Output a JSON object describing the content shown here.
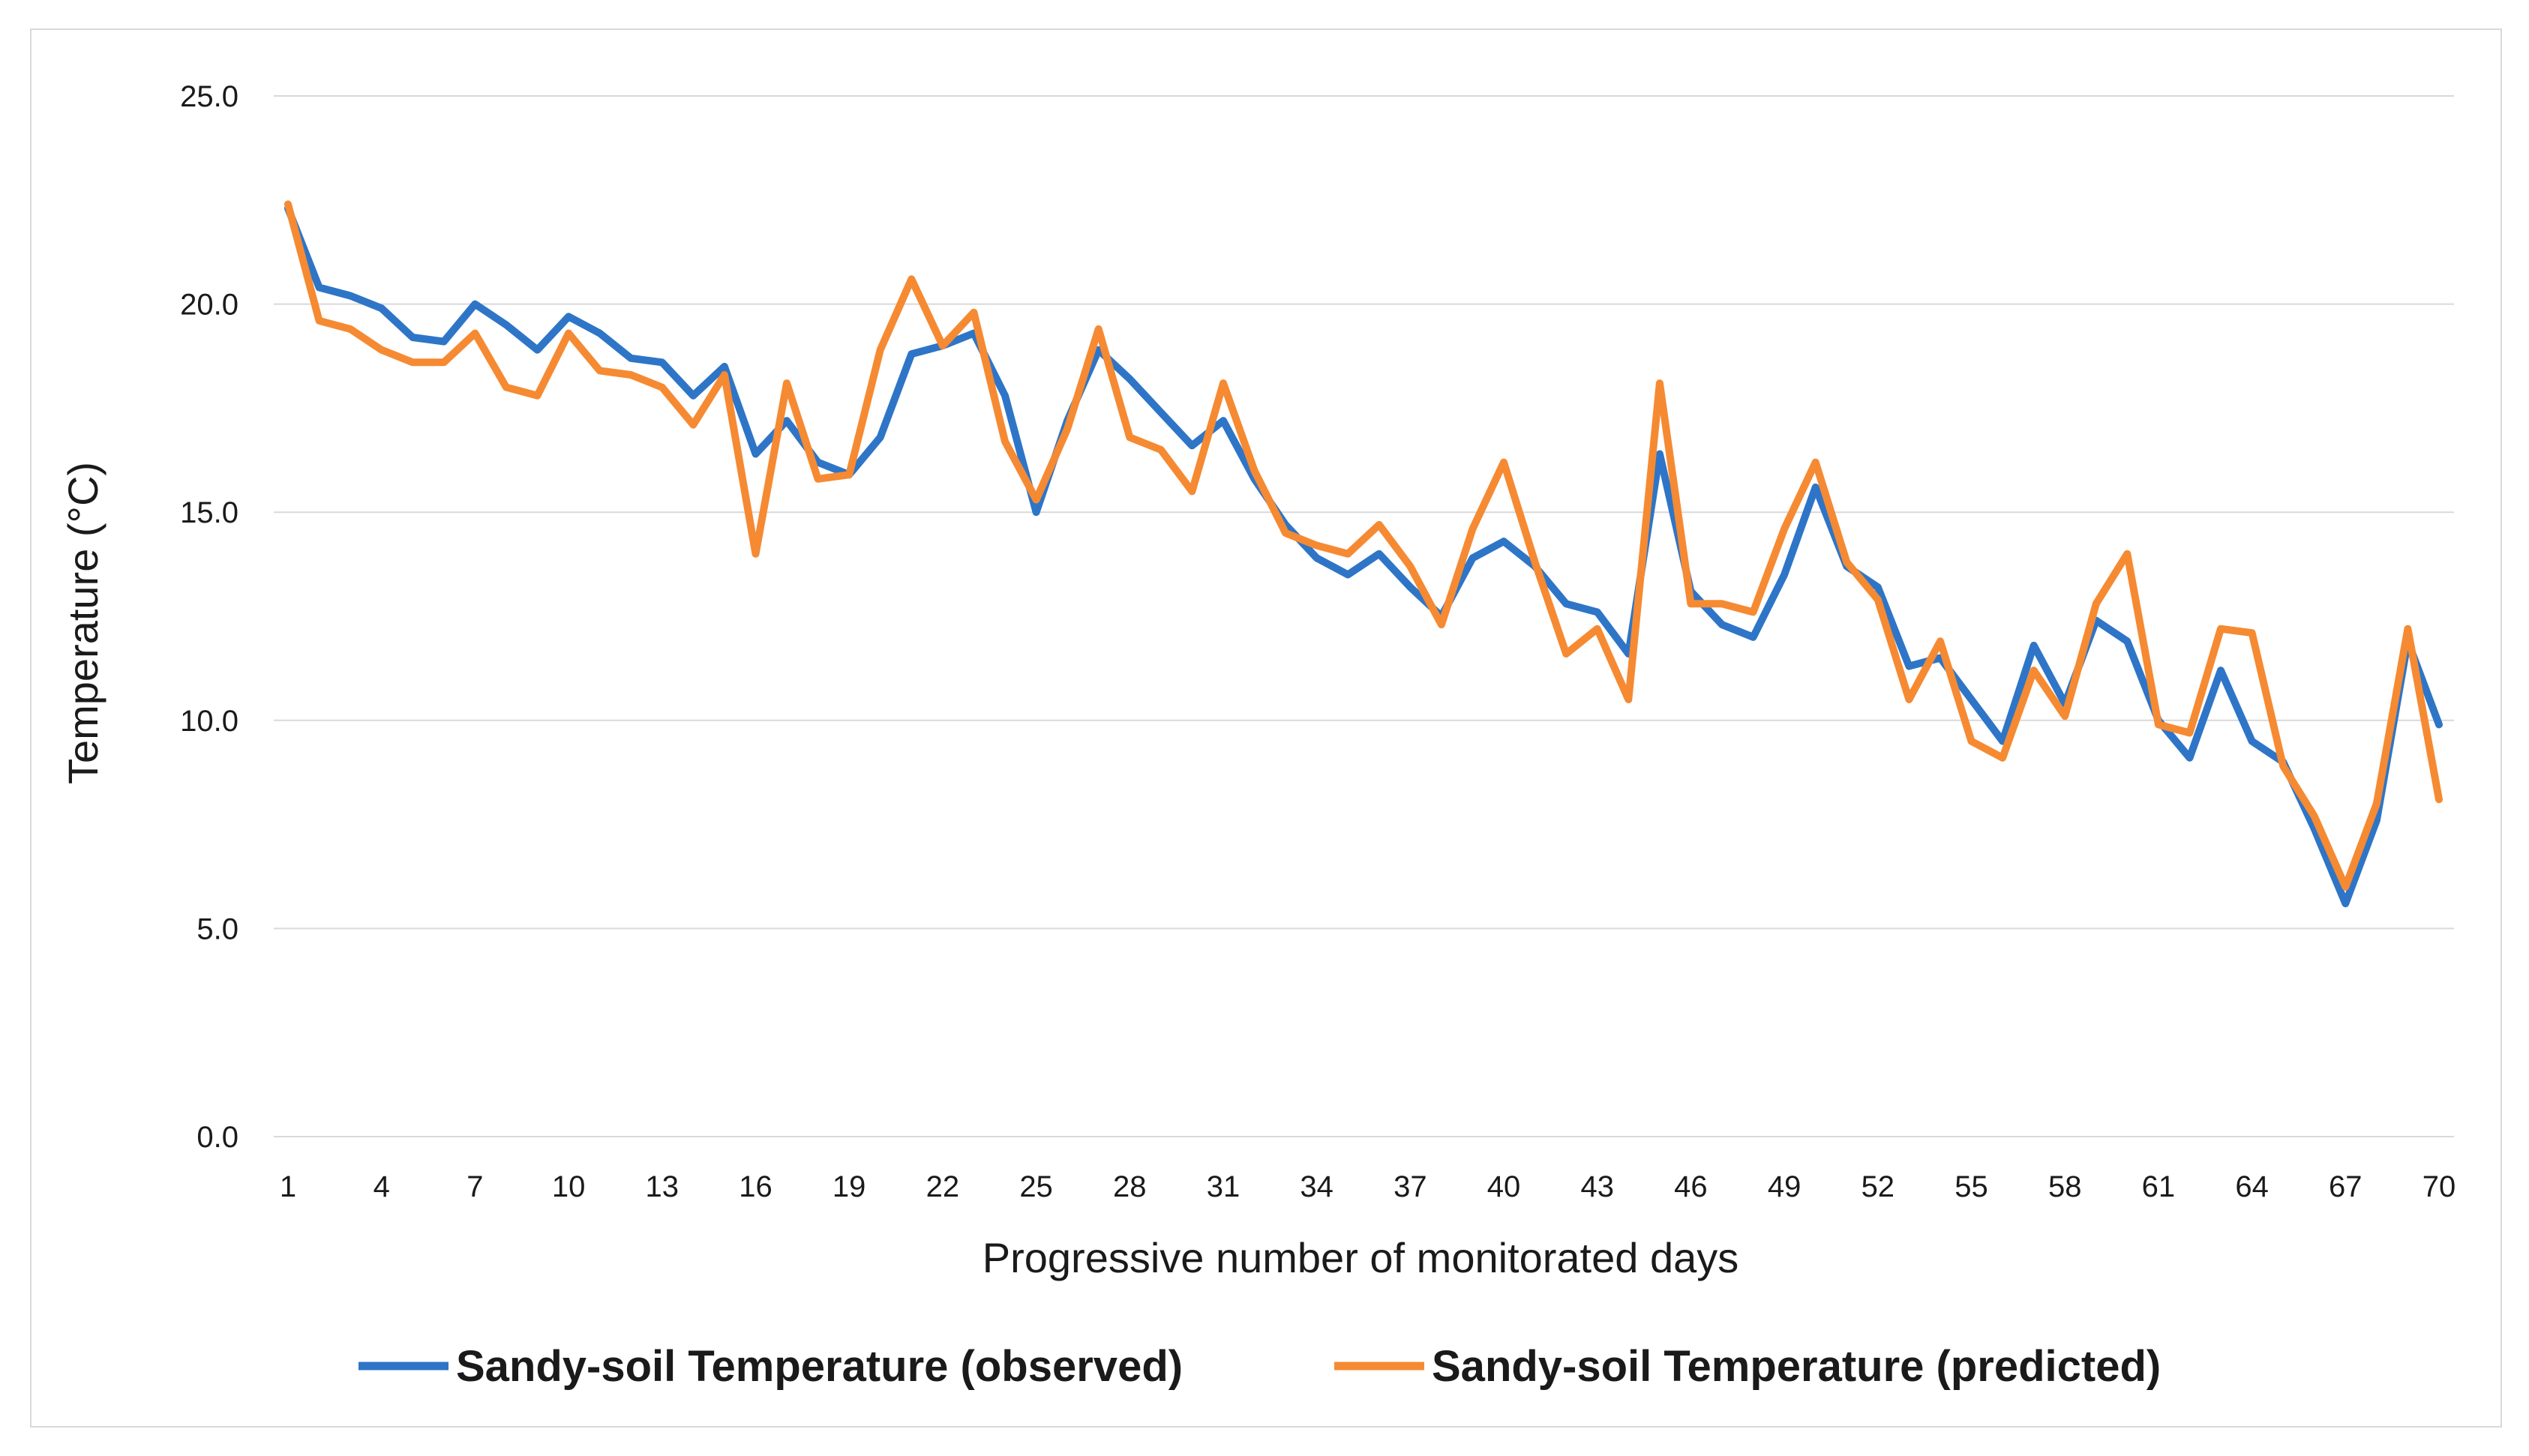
{
  "chart_data": {
    "type": "line",
    "title": "",
    "xlabel": "Progressive number of monitorated days",
    "ylabel": "Temperature (°C)",
    "ylim": [
      0,
      25
    ],
    "yticks": [
      "0.0",
      "5.0",
      "10.0",
      "15.0",
      "20.0",
      "25.0"
    ],
    "xtick_labels": [
      "1",
      "4",
      "7",
      "10",
      "13",
      "16",
      "19",
      "22",
      "25",
      "28",
      "31",
      "34",
      "37",
      "40",
      "43",
      "46",
      "49",
      "52",
      "55",
      "58",
      "61",
      "64",
      "67",
      "70"
    ],
    "grid": true,
    "legend_position": "bottom",
    "x": [
      1,
      2,
      3,
      4,
      5,
      6,
      7,
      8,
      9,
      10,
      11,
      12,
      13,
      14,
      15,
      16,
      17,
      18,
      19,
      20,
      21,
      22,
      23,
      24,
      25,
      26,
      27,
      28,
      29,
      30,
      31,
      32,
      33,
      34,
      35,
      36,
      37,
      38,
      39,
      40,
      41,
      42,
      43,
      44,
      45,
      46,
      47,
      48,
      49,
      50,
      51,
      52,
      53,
      54,
      55,
      56,
      57,
      58,
      59,
      60,
      61,
      62,
      63,
      64,
      65,
      66,
      67,
      68,
      69,
      70
    ],
    "series": [
      {
        "name": "Sandy-soil Temperature (observed)",
        "color": "#2e75c7",
        "values": [
          22.3,
          20.4,
          20.2,
          19.9,
          19.2,
          19.1,
          20.0,
          19.5,
          18.9,
          19.7,
          19.3,
          18.7,
          18.6,
          17.8,
          18.5,
          16.4,
          17.2,
          16.2,
          15.9,
          16.8,
          18.8,
          19.0,
          19.3,
          17.8,
          15.0,
          17.2,
          18.9,
          18.2,
          17.4,
          16.6,
          17.2,
          15.8,
          14.7,
          13.9,
          13.5,
          14.0,
          13.2,
          12.5,
          13.9,
          14.3,
          13.7,
          12.8,
          12.6,
          11.6,
          16.4,
          13.1,
          12.3,
          12.0,
          13.5,
          15.6,
          13.7,
          13.2,
          11.3,
          11.5,
          10.5,
          9.5,
          11.8,
          10.4,
          12.4,
          11.9,
          10.0,
          9.1,
          11.2,
          9.5,
          9.0,
          7.4,
          5.6,
          7.6,
          11.9,
          9.9
        ]
      },
      {
        "name": "Sandy-soil Temperature (predicted)",
        "color": "#f58a33",
        "values": [
          22.4,
          19.6,
          19.4,
          18.9,
          18.6,
          18.6,
          19.3,
          18.0,
          17.8,
          19.3,
          18.4,
          18.3,
          18.0,
          17.1,
          18.3,
          14.0,
          18.1,
          15.8,
          15.9,
          18.9,
          20.6,
          19.0,
          19.8,
          16.7,
          15.3,
          17.0,
          19.4,
          16.8,
          16.5,
          15.5,
          18.1,
          16.0,
          14.5,
          14.2,
          14.0,
          14.7,
          13.7,
          12.3,
          14.6,
          16.2,
          13.8,
          11.6,
          12.2,
          10.5,
          18.1,
          12.8,
          12.8,
          12.6,
          14.6,
          16.2,
          13.8,
          12.9,
          10.5,
          11.9,
          9.5,
          9.1,
          11.2,
          10.1,
          12.8,
          14.0,
          9.9,
          9.7,
          12.2,
          12.1,
          8.9,
          7.7,
          6.0,
          8.0,
          12.2,
          8.1
        ]
      }
    ]
  }
}
